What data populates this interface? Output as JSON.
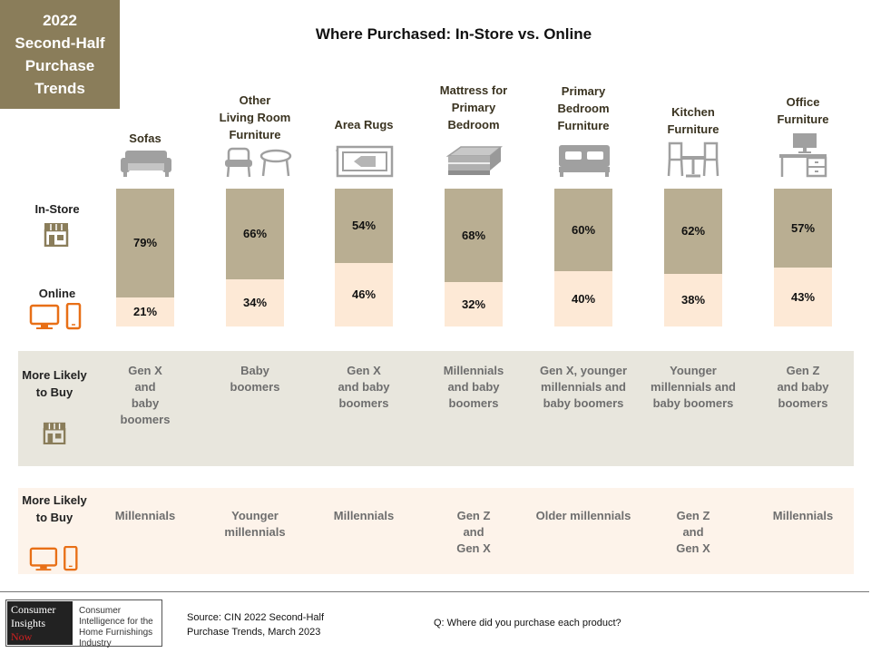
{
  "corner": {
    "lines": [
      "2022",
      "Second-Half",
      "Purchase",
      "Trends"
    ]
  },
  "title": "Where Purchased: In-Store vs. Online",
  "labels": {
    "in_store": "In-Store",
    "online": "Online",
    "more_likely": "More Likely to Buy"
  },
  "colors": {
    "in_store": "#b9ae92",
    "online": "#fde9d6",
    "accent_brown": "#8a7d5a",
    "device_orange": "#e86f16"
  },
  "chart_data": {
    "type": "bar",
    "stacked": true,
    "categories": [
      "Sofas",
      "Other Living Room Furniture",
      "Area Rugs",
      "Mattress for Primary Bedroom",
      "Primary Bedroom Furniture",
      "Kitchen Furniture",
      "Office Furniture"
    ],
    "series": [
      {
        "name": "In-Store",
        "values": [
          79,
          66,
          54,
          68,
          60,
          62,
          57
        ]
      },
      {
        "name": "Online",
        "values": [
          21,
          34,
          46,
          32,
          40,
          38,
          43
        ]
      }
    ],
    "value_labels_instore": [
      "79%",
      "66%",
      "54%",
      "68%",
      "60%",
      "62%",
      "57%"
    ],
    "value_labels_online": [
      "21%",
      "34%",
      "46%",
      "32%",
      "40%",
      "38%",
      "43%"
    ],
    "ylim": [
      0,
      100
    ]
  },
  "categories_display": [
    [
      "Sofas"
    ],
    [
      "Other",
      "Living Room",
      "Furniture"
    ],
    [
      "Area Rugs"
    ],
    [
      "Mattress for",
      "Primary",
      "Bedroom"
    ],
    [
      "Primary",
      "Bedroom",
      "Furniture"
    ],
    [
      "Kitchen",
      "Furniture"
    ],
    [
      "Office",
      "Furniture"
    ]
  ],
  "icons": [
    "sofa-icon",
    "chairs-icon",
    "rug-icon",
    "mattress-icon",
    "bed-icon",
    "kitchen-table-icon",
    "office-desk-icon"
  ],
  "instore_buyers": [
    [
      "Gen X",
      "and",
      "baby",
      "boomers"
    ],
    [
      "Baby",
      "boomers"
    ],
    [
      "Gen X",
      "and baby",
      "boomers"
    ],
    [
      "Millennials",
      "and baby",
      "boomers"
    ],
    [
      "Gen X, younger",
      "millennials and",
      "baby boomers"
    ],
    [
      "Younger",
      "millennials and",
      "baby boomers"
    ],
    [
      "Gen Z",
      "and baby",
      "boomers"
    ]
  ],
  "online_buyers": [
    [
      "Millennials"
    ],
    [
      "Younger",
      "millennials"
    ],
    [
      "Millennials"
    ],
    [
      "Gen Z",
      "and",
      "Gen X"
    ],
    [
      "Older millennials"
    ],
    [
      "Gen Z",
      "and",
      "Gen X"
    ],
    [
      "Millennials"
    ]
  ],
  "footer": {
    "logo_left_lines": [
      "Consumer",
      "Insights",
      "Now"
    ],
    "logo_right": "Consumer Intelligence for the Home Furnishings Industry",
    "source": "Source:  CIN 2022 Second-Half Purchase Trends, March 2023",
    "question": "Q: Where did you purchase each product?"
  }
}
